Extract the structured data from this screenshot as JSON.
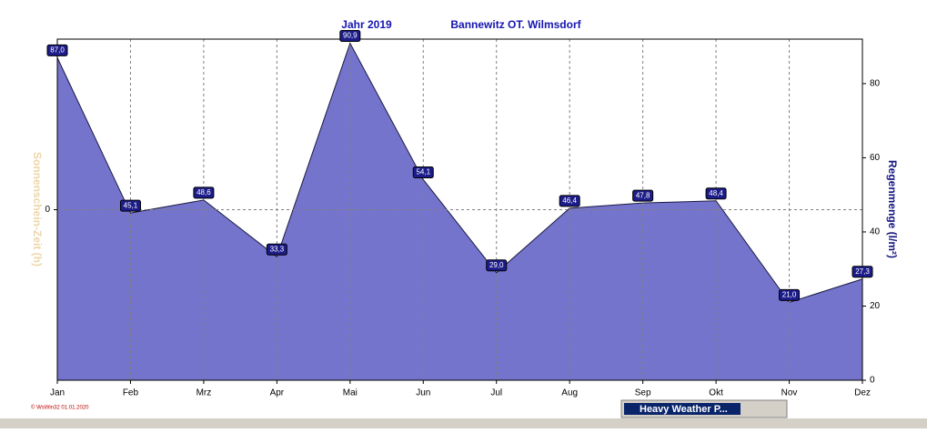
{
  "chart_data": {
    "type": "area",
    "title": "Jahr  2019",
    "subtitle": "Bannewitz OT. Wilmsdorf",
    "categories": [
      "Jan",
      "Feb",
      "Mrz",
      "Apr",
      "Mai",
      "Jun",
      "Jul",
      "Aug",
      "Sep",
      "Okt",
      "Nov",
      "Dez"
    ],
    "series": [
      {
        "name": "Regenmenge (l/m²)",
        "color": "#7474cc",
        "axis": "y2",
        "values": [
          87.0,
          45.1,
          48.6,
          33.3,
          90.9,
          54.1,
          29.0,
          46.4,
          47.8,
          48.4,
          21.0,
          27.3
        ],
        "value_labels": [
          "87,0",
          "45,1",
          "48,6",
          "33,3",
          "90,9",
          "54,1",
          "29,0",
          "46,4",
          "47,8",
          "48,4",
          "21,0",
          "27,3"
        ]
      }
    ],
    "y_label": "Sonnenschein-Zeit  (h)",
    "ylim": [
      -1,
      1
    ],
    "yticks": [
      0
    ],
    "y2_label": "Regenmenge  (l/m²)",
    "y2lim": [
      0,
      92
    ],
    "y2ticks": [
      0,
      20,
      40,
      60,
      80
    ],
    "grid": true,
    "footer": "© WsWin32  01.01.2020"
  },
  "taskbar": {
    "window_title": "Heavy Weather P..."
  }
}
